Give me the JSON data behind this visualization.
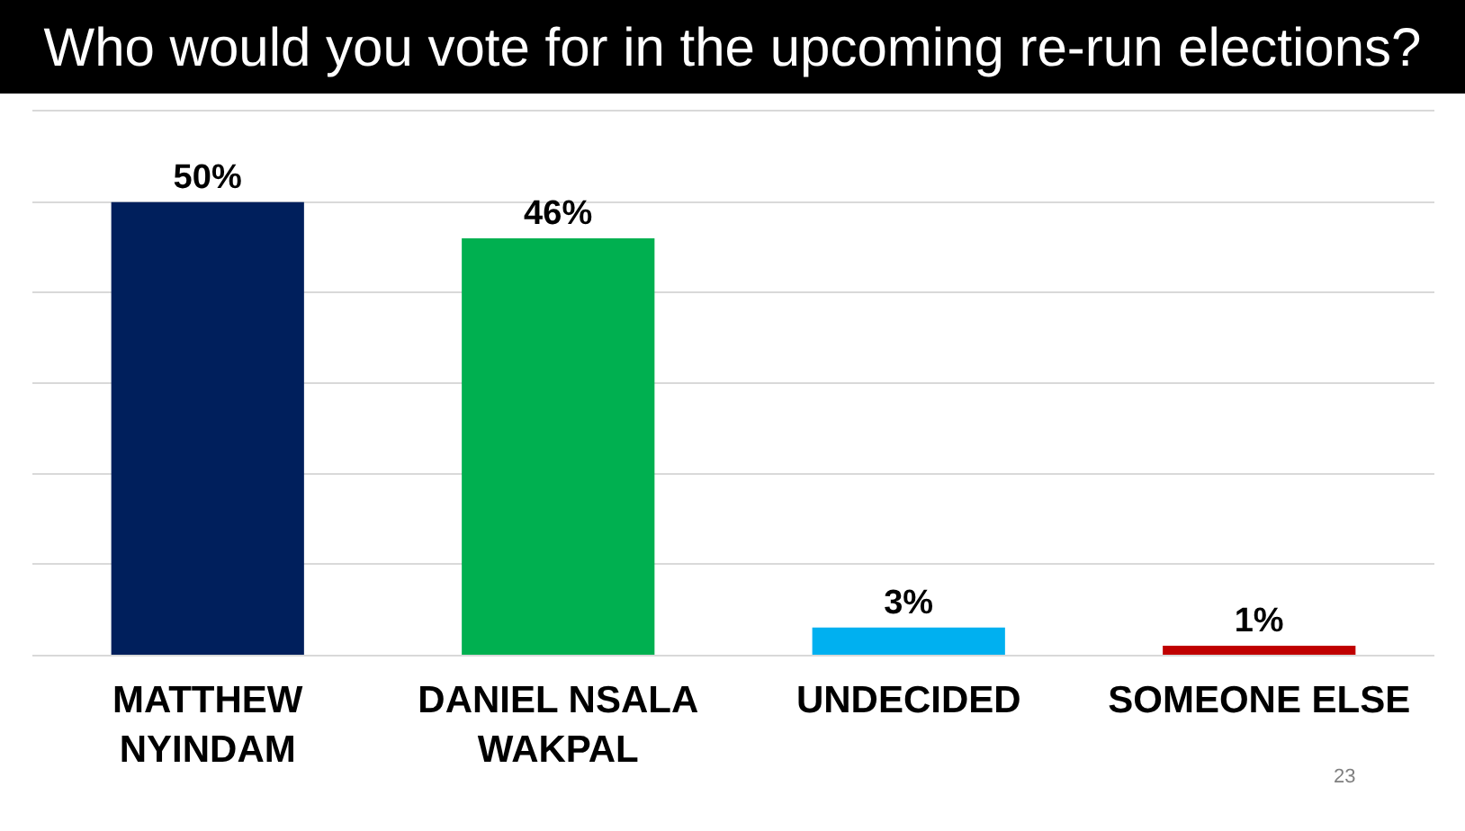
{
  "chart_data": {
    "type": "bar",
    "title": "Who would you vote for in the upcoming re-run elections?",
    "categories": [
      "MATTHEW NYINDAM",
      "DANIEL NSALA WAKPAL",
      "UNDECIDED",
      "SOMEONE ELSE"
    ],
    "values": [
      50,
      46,
      3,
      1
    ],
    "colors": [
      "#001f5c",
      "#00b050",
      "#00b0f0",
      "#c00000"
    ],
    "value_labels": [
      "50%",
      "46%",
      "3%",
      "1%"
    ],
    "ylim": [
      0,
      60
    ],
    "yticks": [
      {
        "value": 0,
        "label": null
      },
      {
        "value": 10,
        "label": null
      },
      {
        "value": 20,
        "label": null
      },
      {
        "value": 30,
        "label": null
      },
      {
        "value": 40,
        "label": null
      },
      {
        "value": 50,
        "label": null
      },
      {
        "value": 60,
        "label": null
      }
    ],
    "grid": "y",
    "tick_labels": "x",
    "annotations": [
      "23"
    ]
  }
}
